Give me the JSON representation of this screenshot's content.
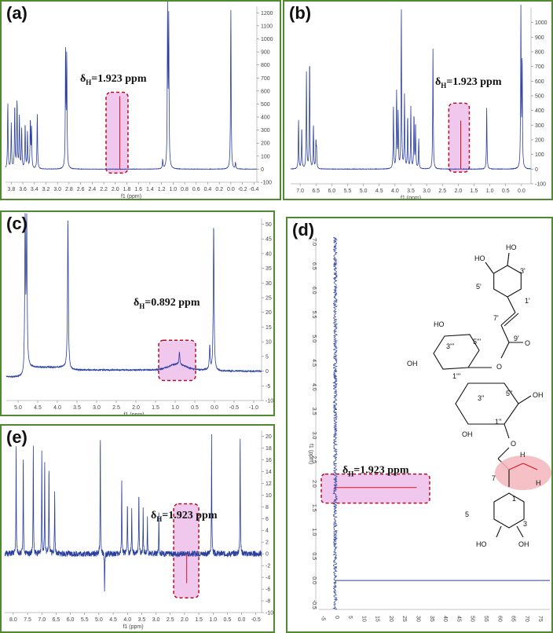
{
  "figure": {
    "panels": [
      {
        "id": "a",
        "label": "(a)",
        "annotation_prefix": "δ",
        "annotation_sub": "H",
        "annotation_value": "=1.923 ppm",
        "xlabel": "f1 (ppm)",
        "x_ticks": [
          "3.8",
          "3.6",
          "3.4",
          "3.2",
          "3.0",
          "2.8",
          "2.6",
          "2.4",
          "2.2",
          "2.0",
          "1.8",
          "1.6",
          "1.4",
          "1.2",
          "1.0",
          "0.8",
          "0.6",
          "0.4",
          "0.2",
          "0.0",
          "-0.2",
          "-0.4"
        ],
        "y_ticks": [
          "1200",
          "1100",
          "1000",
          "900",
          "800",
          "700",
          "600",
          "500",
          "400",
          "300",
          "200",
          "100",
          "0",
          "-100"
        ]
      },
      {
        "id": "b",
        "label": "(b)",
        "annotation_prefix": "δ",
        "annotation_sub": "H",
        "annotation_value": "=1.923 ppm",
        "xlabel": "f1 (ppm)",
        "x_ticks": [
          "7.0",
          "6.5",
          "6.0",
          "5.5",
          "5.0",
          "4.5",
          "4.0",
          "3.5",
          "3.0",
          "2.5",
          "2.0",
          "1.5",
          "1.0",
          "0.5",
          "0.0"
        ],
        "y_ticks": [
          "1000",
          "900",
          "800",
          "700",
          "600",
          "500",
          "400",
          "300",
          "200",
          "100",
          "0",
          "-100"
        ]
      },
      {
        "id": "c",
        "label": "(c)",
        "annotation_prefix": "δ",
        "annotation_sub": "H",
        "annotation_value": "=0.892 ppm",
        "xlabel": "f1 (ppm)",
        "x_ticks": [
          "5.0",
          "4.5",
          "4.0",
          "3.5",
          "3.0",
          "2.5",
          "2.0",
          "1.5",
          "1.0",
          "0.5",
          "0.0",
          "-0.5",
          "-1.0"
        ],
        "y_ticks": [
          "50",
          "45",
          "40",
          "35",
          "30",
          "25",
          "20",
          "15",
          "10",
          "5",
          "0",
          "-5",
          "-10"
        ]
      },
      {
        "id": "d",
        "label": "(d)",
        "annotation_prefix": "δ",
        "annotation_sub": "H",
        "annotation_value": "=1.923 ppm",
        "ylabel": "f1 (ppm)",
        "y_ticks": [
          "7.0",
          "6.5",
          "6.0",
          "5.5",
          "5.0",
          "4.5",
          "4.0",
          "3.5",
          "3.0",
          "2.5",
          "2.0",
          "1.5",
          "1.0",
          "0.5",
          "0.0",
          "-0.5"
        ],
        "x_ticks": [
          "-5",
          "0",
          "5",
          "10",
          "15",
          "20",
          "25",
          "30",
          "35",
          "40",
          "45",
          "50",
          "55",
          "60",
          "65",
          "70",
          "75"
        ]
      },
      {
        "id": "e",
        "label": "(e)",
        "annotation_prefix": "δ",
        "annotation_sub": "H",
        "annotation_value": "=1.923 ppm",
        "xlabel": "f1 (ppm)",
        "x_ticks": [
          "8.0",
          "7.5",
          "7.0",
          "6.5",
          "6.0",
          "5.5",
          "5.0",
          "4.5",
          "4.0",
          "3.5",
          "3.0",
          "2.5",
          "2.0",
          "1.5",
          "1.0",
          "0.5",
          "0.0",
          "-0.5"
        ],
        "y_ticks": [
          "20",
          "18",
          "16",
          "14",
          "12",
          "10",
          "8",
          "6",
          "4",
          "2",
          "0",
          "-2",
          "-4",
          "-6",
          "-8",
          "-10"
        ]
      }
    ],
    "molecule_labels": [
      "HO",
      "HO",
      "3'",
      "5'",
      "1'",
      "7'",
      "9'",
      "O",
      "O",
      "HO",
      "3'''",
      "5'''",
      "1'''",
      "OH",
      "O",
      "3''",
      "5''",
      "1''",
      "OH",
      "OH",
      "O",
      "H",
      "H",
      "7",
      "1",
      "5",
      "3",
      "HO",
      "OH"
    ]
  },
  "chart_data": [
    {
      "type": "line",
      "panel": "a",
      "xlabel": "f1 (ppm)",
      "xlim": [
        3.9,
        -0.45
      ],
      "ylim": [
        -100,
        1250
      ],
      "peaks": [
        {
          "x": 3.86,
          "y": 500
        },
        {
          "x": 3.8,
          "y": 350
        },
        {
          "x": 3.74,
          "y": 480
        },
        {
          "x": 3.7,
          "y": 520
        },
        {
          "x": 3.66,
          "y": 400
        },
        {
          "x": 3.62,
          "y": 300
        },
        {
          "x": 3.56,
          "y": 340
        },
        {
          "x": 3.52,
          "y": 280
        },
        {
          "x": 3.47,
          "y": 360
        },
        {
          "x": 3.45,
          "y": 300
        },
        {
          "x": 3.35,
          "y": 420
        },
        {
          "x": 2.86,
          "y": 880
        },
        {
          "x": 2.84,
          "y": 830
        },
        {
          "x": 1.923,
          "y": 560
        },
        {
          "x": 1.18,
          "y": 70
        },
        {
          "x": 1.095,
          "y": 1210
        },
        {
          "x": 1.075,
          "y": 1120
        },
        {
          "x": 0.0,
          "y": 1230
        },
        {
          "x": -0.08,
          "y": 50
        }
      ]
    },
    {
      "type": "line",
      "panel": "b",
      "xlabel": "f1 (ppm)",
      "xlim": [
        7.3,
        -0.3
      ],
      "ylim": [
        -100,
        1100
      ],
      "peaks": [
        {
          "x": 7.05,
          "y": 330
        },
        {
          "x": 6.95,
          "y": 280
        },
        {
          "x": 6.8,
          "y": 660
        },
        {
          "x": 6.7,
          "y": 740
        },
        {
          "x": 6.58,
          "y": 300
        },
        {
          "x": 6.5,
          "y": 180
        },
        {
          "x": 6.48,
          "y": 120
        },
        {
          "x": 4.05,
          "y": 430
        },
        {
          "x": 3.95,
          "y": 520
        },
        {
          "x": 3.9,
          "y": 380
        },
        {
          "x": 3.8,
          "y": 1100
        },
        {
          "x": 3.7,
          "y": 500
        },
        {
          "x": 3.6,
          "y": 350
        },
        {
          "x": 3.5,
          "y": 420
        },
        {
          "x": 3.4,
          "y": 360
        },
        {
          "x": 3.35,
          "y": 300
        },
        {
          "x": 3.25,
          "y": 200
        },
        {
          "x": 2.8,
          "y": 820
        },
        {
          "x": 1.923,
          "y": 330
        },
        {
          "x": 1.1,
          "y": 420
        },
        {
          "x": 0.02,
          "y": 1080
        },
        {
          "x": -0.02,
          "y": 720
        }
      ]
    },
    {
      "type": "line",
      "panel": "c",
      "xlabel": "f1 (ppm)",
      "xlim": [
        5.3,
        -1.2
      ],
      "ylim": [
        -10,
        52
      ],
      "peaks": [
        {
          "x": 4.82,
          "y": 50
        },
        {
          "x": 4.78,
          "y": 48
        },
        {
          "x": 3.73,
          "y": 52
        },
        {
          "x": 0.892,
          "y": 4.2
        },
        {
          "x": 0.02,
          "y": 50
        },
        {
          "x": 0.12,
          "y": 8
        }
      ]
    },
    {
      "type": "line",
      "panel": "d",
      "ylabel": "f1 (ppm)",
      "ylim": [
        7.1,
        -0.6
      ],
      "xlim": [
        -6,
        79
      ],
      "peaks": [
        {
          "y": 1.923,
          "x": 30
        },
        {
          "y": 0.0,
          "x": 79
        }
      ]
    },
    {
      "type": "line",
      "panel": "e",
      "xlabel": "f1 (ppm)",
      "xlim": [
        8.3,
        -0.7
      ],
      "ylim": [
        -10,
        21
      ],
      "peaks": [
        {
          "x": 7.9,
          "y": 18
        },
        {
          "x": 7.65,
          "y": 17
        },
        {
          "x": 7.3,
          "y": 19
        },
        {
          "x": 7.0,
          "y": 18
        },
        {
          "x": 6.9,
          "y": 16
        },
        {
          "x": 6.75,
          "y": 15
        },
        {
          "x": 6.55,
          "y": 11
        },
        {
          "x": 4.95,
          "y": 21
        },
        {
          "x": 4.8,
          "y": -7
        },
        {
          "x": 4.2,
          "y": 13
        },
        {
          "x": 4.0,
          "y": 9
        },
        {
          "x": 3.85,
          "y": 8
        },
        {
          "x": 3.6,
          "y": 11
        },
        {
          "x": 3.45,
          "y": 8
        },
        {
          "x": 3.3,
          "y": 6
        },
        {
          "x": 2.9,
          "y": 7
        },
        {
          "x": 1.923,
          "y": -5
        },
        {
          "x": 1.05,
          "y": 20
        },
        {
          "x": 0.05,
          "y": 21
        }
      ]
    }
  ]
}
